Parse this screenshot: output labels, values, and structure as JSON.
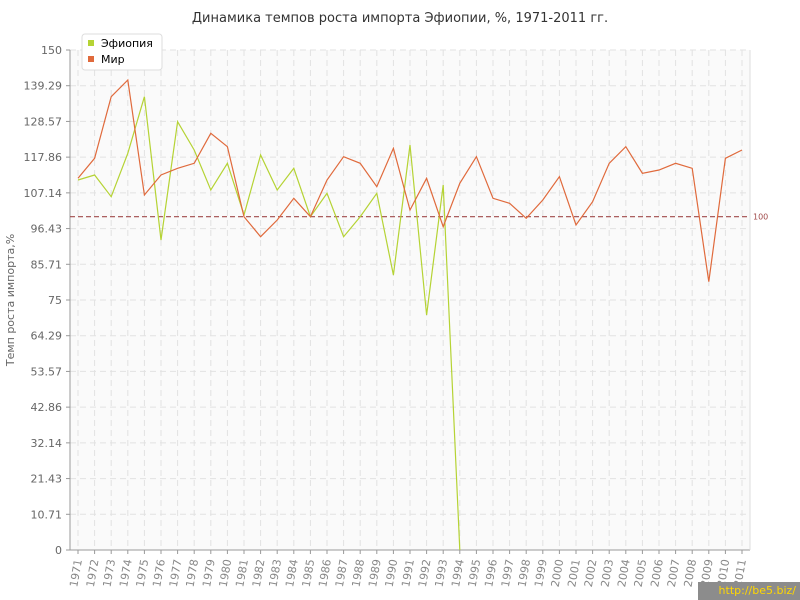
{
  "chart_data": {
    "type": "line",
    "title": "Динамика темпов роста импорта Эфиопии, %, 1971-2011 гг.",
    "ylabel": "Темп роста импорта,%",
    "xlabel": "",
    "ylim": [
      0,
      150
    ],
    "yticks": [
      "0",
      "10.71",
      "21.43",
      "32.14",
      "42.86",
      "53.57",
      "64.29",
      "75",
      "85.71",
      "96.43",
      "107.14",
      "117.86",
      "128.57",
      "139.29",
      "150"
    ],
    "x": [
      "1971",
      "1972",
      "1973",
      "1974",
      "1975",
      "1976",
      "1977",
      "1978",
      "1979",
      "1980",
      "1981",
      "1982",
      "1983",
      "1984",
      "1985",
      "1986",
      "1987",
      "1988",
      "1989",
      "1990",
      "1991",
      "1992",
      "1993",
      "1994",
      "1995",
      "1996",
      "1997",
      "1998",
      "1999",
      "2000",
      "2001",
      "2002",
      "2003",
      "2004",
      "2005",
      "2006",
      "2007",
      "2008",
      "2009",
      "2010",
      "2011"
    ],
    "reference_line": {
      "value": 100,
      "label": "100",
      "color": "#a04a4a"
    },
    "grid": true,
    "legend_position": "top-left",
    "series": [
      {
        "name": "Эфиопия",
        "color": "#b5d334",
        "values": [
          111,
          112.5,
          106,
          119,
          136,
          93,
          128.5,
          120,
          108,
          116,
          100.5,
          118.5,
          108,
          114.5,
          100,
          107,
          94,
          100,
          107,
          82.5,
          121.5,
          70.5,
          109.5,
          0,
          null,
          null,
          null,
          null,
          null,
          null,
          null,
          null,
          null,
          null,
          null,
          null,
          null,
          null,
          null,
          null,
          null
        ]
      },
      {
        "name": "Мир",
        "color": "#e06a3c",
        "values": [
          111.5,
          117.5,
          136,
          141,
          106.5,
          112.5,
          114.5,
          116,
          125,
          121,
          100,
          94,
          99,
          105.5,
          100,
          111,
          118,
          116,
          109,
          120.5,
          102,
          111.5,
          97,
          110,
          118,
          105.5,
          104,
          99.5,
          105,
          112,
          97.5,
          104.5,
          116,
          121,
          113,
          114,
          116,
          114.5,
          80.5,
          117.5,
          120
        ]
      }
    ]
  },
  "watermark": "http://be5.biz/"
}
